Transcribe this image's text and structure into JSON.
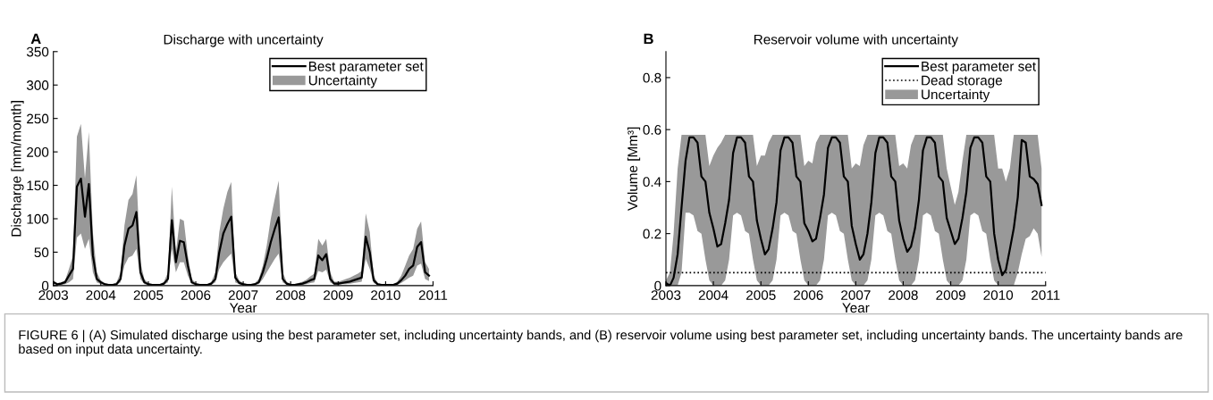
{
  "chart_data": [
    {
      "type": "line",
      "title": "Discharge with uncertainty",
      "xlabel": "Year",
      "ylabel": "Discharge [mm/month]",
      "x": [
        "2003-01",
        "2003-02",
        "2003-03",
        "2003-04",
        "2003-05",
        "2003-06",
        "2003-07",
        "2003-08",
        "2003-09",
        "2003-10",
        "2003-11",
        "2003-12",
        "2004-01",
        "2004-02",
        "2004-03",
        "2004-04",
        "2004-05",
        "2004-06",
        "2004-07",
        "2004-08",
        "2004-09",
        "2004-10",
        "2004-11",
        "2004-12",
        "2005-01",
        "2005-02",
        "2005-03",
        "2005-04",
        "2005-05",
        "2005-06",
        "2005-07",
        "2005-08",
        "2005-09",
        "2005-10",
        "2005-11",
        "2005-12",
        "2006-01",
        "2006-02",
        "2006-03",
        "2006-04",
        "2006-05",
        "2006-06",
        "2006-07",
        "2006-08",
        "2006-09",
        "2006-10",
        "2006-11",
        "2006-12",
        "2007-01",
        "2007-02",
        "2007-03",
        "2007-04",
        "2007-05",
        "2007-06",
        "2007-07",
        "2007-08",
        "2007-09",
        "2007-10",
        "2007-11",
        "2007-12",
        "2008-01",
        "2008-02",
        "2008-03",
        "2008-04",
        "2008-05",
        "2008-06",
        "2008-07",
        "2008-08",
        "2008-09",
        "2008-10",
        "2008-11",
        "2008-12",
        "2009-01",
        "2009-02",
        "2009-03",
        "2009-04",
        "2009-05",
        "2009-06",
        "2009-07",
        "2009-08",
        "2009-09",
        "2009-10",
        "2009-11",
        "2009-12",
        "2010-01",
        "2010-02",
        "2010-03",
        "2010-04",
        "2010-05",
        "2010-06",
        "2010-07",
        "2010-08",
        "2010-09",
        "2010-10",
        "2010-11",
        "2010-12"
      ],
      "series": [
        {
          "name": "Best parameter set",
          "type": "line",
          "color": "#000000",
          "values": [
            5,
            2,
            3,
            5,
            15,
            25,
            148,
            160,
            103,
            152,
            45,
            10,
            5,
            2,
            1,
            1,
            2,
            10,
            60,
            85,
            90,
            110,
            20,
            5,
            2,
            1,
            1,
            1,
            3,
            10,
            98,
            35,
            67,
            65,
            30,
            5,
            2,
            1,
            1,
            1,
            3,
            10,
            50,
            78,
            92,
            103,
            12,
            4,
            2,
            1,
            1,
            2,
            5,
            20,
            40,
            65,
            85,
            102,
            10,
            3,
            1,
            1,
            2,
            3,
            5,
            8,
            10,
            45,
            38,
            47,
            10,
            3,
            3,
            4,
            5,
            6,
            8,
            10,
            12,
            73,
            50,
            8,
            2,
            1,
            1,
            1,
            1,
            3,
            8,
            15,
            25,
            30,
            58,
            65,
            20,
            15
          ],
          "lower": [
            2,
            1,
            1,
            2,
            5,
            10,
            72,
            78,
            55,
            70,
            20,
            5,
            2,
            1,
            0,
            0,
            1,
            5,
            30,
            42,
            45,
            55,
            10,
            2,
            1,
            0,
            0,
            0,
            1,
            5,
            55,
            20,
            35,
            35,
            15,
            2,
            1,
            0,
            0,
            0,
            1,
            5,
            25,
            35,
            42,
            48,
            5,
            2,
            1,
            0,
            0,
            1,
            2,
            10,
            20,
            30,
            40,
            48,
            5,
            1,
            0,
            0,
            1,
            1,
            2,
            4,
            5,
            22,
            20,
            24,
            5,
            1,
            1,
            2,
            2,
            3,
            4,
            5,
            6,
            40,
            25,
            4,
            1,
            0,
            0,
            0,
            0,
            1,
            4,
            8,
            12,
            15,
            30,
            33,
            10,
            7
          ],
          "upper": [
            8,
            4,
            5,
            8,
            25,
            45,
            223,
            242,
            160,
            230,
            80,
            20,
            8,
            4,
            2,
            2,
            5,
            20,
            90,
            128,
            137,
            165,
            35,
            10,
            4,
            2,
            2,
            2,
            6,
            20,
            148,
            50,
            100,
            97,
            45,
            10,
            4,
            2,
            2,
            2,
            6,
            20,
            80,
            115,
            140,
            155,
            20,
            8,
            4,
            2,
            2,
            4,
            10,
            30,
            60,
            100,
            130,
            157,
            20,
            6,
            2,
            2,
            4,
            6,
            9,
            14,
            18,
            70,
            60,
            70,
            20,
            6,
            6,
            8,
            10,
            12,
            15,
            18,
            22,
            108,
            80,
            15,
            4,
            2,
            2,
            2,
            2,
            6,
            15,
            30,
            45,
            55,
            85,
            96,
            35,
            25
          ]
        },
        {
          "name": "Uncertainty",
          "type": "area",
          "color": "#999999",
          "values": [
            null,
            null,
            null,
            null,
            null,
            null,
            null,
            null,
            null,
            null,
            null,
            null,
            null,
            null,
            null,
            null,
            null,
            null,
            null,
            null,
            null,
            null,
            null,
            null,
            null,
            null,
            null,
            null,
            null,
            null,
            null,
            null,
            null,
            null,
            null,
            null,
            null,
            null,
            null,
            null,
            null,
            null,
            null,
            null,
            null,
            null,
            null,
            null,
            null,
            null,
            null,
            null,
            null,
            null,
            null,
            null,
            null,
            null,
            null,
            null,
            null,
            null,
            null,
            null,
            null,
            null,
            null,
            null,
            null,
            null,
            null,
            null,
            null,
            null,
            null,
            null,
            null,
            null,
            null,
            null,
            null,
            null,
            null,
            null,
            null,
            null,
            null,
            null,
            null,
            null,
            null,
            null,
            null,
            null,
            null,
            null
          ]
        }
      ],
      "xlim": [
        "2003",
        "2011"
      ],
      "xticks": [
        "2003",
        "2004",
        "2005",
        "2006",
        "2007",
        "2008",
        "2009",
        "2010",
        "2011"
      ],
      "ylim": [
        0,
        350
      ],
      "yticks": [
        0,
        50,
        100,
        150,
        200,
        250,
        300,
        350
      ],
      "legend": "top right",
      "grid": false,
      "marker": "none",
      "line_style": "solid",
      "annotations": [
        "A",
        "FIGURE 6 | (A) Simulated discharge using the best parameter set, including uncertainty bands, and (B) reservoir volume using best parameter set, including uncertainty bands. The uncertainty bands are based on input data uncertainty."
      ]
    },
    {
      "type": "line",
      "title": "Reservoir volume with uncertainty",
      "xlabel": "Year",
      "ylabel": "Volume [Mm³]",
      "x": [
        "2003-01",
        "2003-02",
        "2003-03",
        "2003-04",
        "2003-05",
        "2003-06",
        "2003-07",
        "2003-08",
        "2003-09",
        "2003-10",
        "2003-11",
        "2003-12",
        "2004-01",
        "2004-02",
        "2004-03",
        "2004-04",
        "2004-05",
        "2004-06",
        "2004-07",
        "2004-08",
        "2004-09",
        "2004-10",
        "2004-11",
        "2004-12",
        "2005-01",
        "2005-02",
        "2005-03",
        "2005-04",
        "2005-05",
        "2005-06",
        "2005-07",
        "2005-08",
        "2005-09",
        "2005-10",
        "2005-11",
        "2005-12",
        "2006-01",
        "2006-02",
        "2006-03",
        "2006-04",
        "2006-05",
        "2006-06",
        "2006-07",
        "2006-08",
        "2006-09",
        "2006-10",
        "2006-11",
        "2006-12",
        "2007-01",
        "2007-02",
        "2007-03",
        "2007-04",
        "2007-05",
        "2007-06",
        "2007-07",
        "2007-08",
        "2007-09",
        "2007-10",
        "2007-11",
        "2007-12",
        "2008-01",
        "2008-02",
        "2008-03",
        "2008-04",
        "2008-05",
        "2008-06",
        "2008-07",
        "2008-08",
        "2008-09",
        "2008-10",
        "2008-11",
        "2008-12",
        "2009-01",
        "2009-02",
        "2009-03",
        "2009-04",
        "2009-05",
        "2009-06",
        "2009-07",
        "2009-08",
        "2009-09",
        "2009-10",
        "2009-11",
        "2009-12",
        "2010-01",
        "2010-02",
        "2010-03",
        "2010-04",
        "2010-05",
        "2010-06",
        "2010-07",
        "2010-08",
        "2010-09",
        "2010-10",
        "2010-11",
        "2010-12"
      ],
      "series": [
        {
          "name": "Best parameter set",
          "type": "line",
          "color": "#000000",
          "values": [
            0.01,
            0.0,
            0.03,
            0.12,
            0.3,
            0.48,
            0.57,
            0.57,
            0.55,
            0.42,
            0.4,
            0.28,
            0.22,
            0.15,
            0.16,
            0.24,
            0.33,
            0.51,
            0.57,
            0.57,
            0.55,
            0.42,
            0.4,
            0.25,
            0.18,
            0.12,
            0.14,
            0.22,
            0.32,
            0.52,
            0.57,
            0.57,
            0.55,
            0.42,
            0.4,
            0.24,
            0.21,
            0.17,
            0.18,
            0.26,
            0.35,
            0.53,
            0.57,
            0.57,
            0.55,
            0.42,
            0.4,
            0.23,
            0.16,
            0.1,
            0.12,
            0.2,
            0.32,
            0.51,
            0.57,
            0.57,
            0.55,
            0.42,
            0.4,
            0.25,
            0.18,
            0.13,
            0.15,
            0.22,
            0.33,
            0.52,
            0.57,
            0.57,
            0.55,
            0.42,
            0.4,
            0.26,
            0.21,
            0.16,
            0.18,
            0.26,
            0.36,
            0.53,
            0.57,
            0.57,
            0.55,
            0.42,
            0.4,
            0.2,
            0.1,
            0.04,
            0.06,
            0.14,
            0.22,
            0.34,
            0.56,
            0.55,
            0.42,
            0.41,
            0.39,
            0.31
          ],
          "lower": [
            0,
            0,
            0,
            0,
            0.05,
            0.28,
            0.28,
            0.27,
            0.21,
            0.2,
            0.1,
            0.02,
            0,
            0,
            0,
            0.02,
            0.1,
            0.27,
            0.28,
            0.27,
            0.21,
            0.2,
            0.1,
            0.02,
            0,
            0,
            0,
            0.02,
            0.1,
            0.27,
            0.28,
            0.27,
            0.21,
            0.2,
            0.1,
            0.02,
            0,
            0,
            0,
            0.02,
            0.1,
            0.27,
            0.28,
            0.27,
            0.21,
            0.2,
            0.1,
            0.02,
            0,
            0,
            0,
            0.02,
            0.1,
            0.27,
            0.28,
            0.27,
            0.21,
            0.2,
            0.1,
            0.02,
            0,
            0,
            0,
            0.02,
            0.1,
            0.27,
            0.28,
            0.27,
            0.21,
            0.2,
            0.1,
            0.02,
            0,
            0,
            0,
            0.02,
            0.1,
            0.27,
            0.28,
            0.27,
            0.21,
            0.2,
            0.1,
            0.02,
            0,
            0,
            0,
            0,
            0,
            0.05,
            0.12,
            0.18,
            0.19,
            0.22,
            0.2,
            0.11
          ],
          "upper": [
            0.02,
            0.05,
            0.2,
            0.45,
            0.58,
            0.58,
            0.58,
            0.58,
            0.58,
            0.58,
            0.58,
            0.46,
            0.5,
            0.53,
            0.55,
            0.58,
            0.58,
            0.58,
            0.58,
            0.58,
            0.58,
            0.58,
            0.58,
            0.46,
            0.5,
            0.5,
            0.55,
            0.58,
            0.58,
            0.58,
            0.58,
            0.58,
            0.58,
            0.58,
            0.58,
            0.46,
            0.48,
            0.47,
            0.55,
            0.58,
            0.58,
            0.58,
            0.58,
            0.58,
            0.58,
            0.58,
            0.58,
            0.45,
            0.47,
            0.46,
            0.54,
            0.58,
            0.58,
            0.58,
            0.58,
            0.58,
            0.58,
            0.58,
            0.58,
            0.46,
            0.47,
            0.45,
            0.54,
            0.58,
            0.58,
            0.58,
            0.58,
            0.58,
            0.58,
            0.58,
            0.58,
            0.45,
            0.38,
            0.31,
            0.36,
            0.48,
            0.58,
            0.58,
            0.58,
            0.58,
            0.58,
            0.58,
            0.58,
            0.58,
            0.45,
            0.45,
            0.4,
            0.45,
            0.58,
            0.58,
            0.58,
            0.58,
            0.58,
            0.58,
            0.58,
            0.45
          ]
        },
        {
          "name": "Uncertainty",
          "type": "area",
          "color": "#999999",
          "values": [
            null,
            null,
            null,
            null,
            null,
            null,
            null,
            null,
            null,
            null,
            null,
            null,
            null,
            null,
            null,
            null,
            null,
            null,
            null,
            null,
            null,
            null,
            null,
            null,
            null,
            null,
            null,
            null,
            null,
            null,
            null,
            null,
            null,
            null,
            null,
            null,
            null,
            null,
            null,
            null,
            null,
            null,
            null,
            null,
            null,
            null,
            null,
            null,
            null,
            null,
            null,
            null,
            null,
            null,
            null,
            null,
            null,
            null,
            null,
            null,
            null,
            null,
            null,
            null,
            null,
            null,
            null,
            null,
            null,
            null,
            null,
            null,
            null,
            null,
            null,
            null,
            null,
            null,
            null,
            null,
            null,
            null,
            null,
            null,
            null,
            null,
            null,
            null,
            null,
            null,
            null,
            null,
            null,
            null,
            null,
            null
          ]
        }
      ],
      "ref_lines": [
        {
          "axis": "y",
          "value": 0.05,
          "label": "Dead storage",
          "color": "#000000",
          "line_style": "dotted"
        }
      ],
      "xlim": [
        "2003",
        "2011"
      ],
      "xticks": [
        "2003",
        "2004",
        "2005",
        "2006",
        "2007",
        "2008",
        "2009",
        "2010",
        "2011"
      ],
      "ylim": [
        0,
        0.9
      ],
      "yticks": [
        0,
        0.2,
        0.4,
        0.6,
        0.8
      ],
      "legend": "top right",
      "grid": false,
      "marker": "none",
      "line_style": "solid",
      "annotations": [
        "B"
      ]
    }
  ]
}
